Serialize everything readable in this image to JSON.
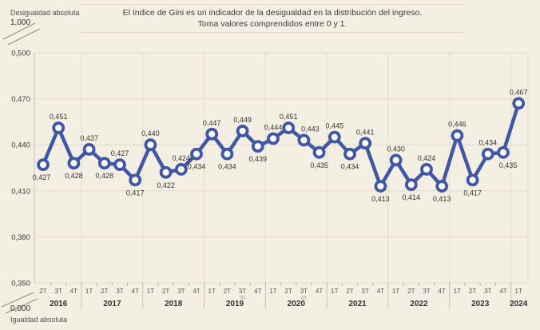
{
  "axis_top": {
    "caption": "Desigualdad absoluta",
    "value": "1,000"
  },
  "axis_bottom": {
    "value": "0,000",
    "caption": "Igualdad absoluta"
  },
  "title": {
    "line1": "El índice de Gini es un indicador de la desigualdad en la distribución del ingreso.",
    "line2": "Toma valores comprendidos entre 0 y 1."
  },
  "chart_data": {
    "type": "line",
    "title": "El índice de Gini es un indicador de la desigualdad en la distribución del ingreso. Toma valores comprendidos entre 0 y 1.",
    "series_color": "#3f57a4",
    "marker_fill": "#fcfaf3",
    "grid_color": "#e1dccd",
    "axis_color": "#c9c4b6",
    "label_color": "#333333",
    "ylim": [
      0.35,
      0.5
    ],
    "y_ticks": [
      "0,500",
      "0,470",
      "0,440",
      "0,410",
      "0,380",
      "0,350"
    ],
    "y_tick_values": [
      0.5,
      0.47,
      0.44,
      0.41,
      0.38,
      0.35
    ],
    "years": [
      {
        "label": "2016",
        "quarters": [
          "2T",
          "3T",
          "4T"
        ]
      },
      {
        "label": "2017",
        "quarters": [
          "1T",
          "2T",
          "3T",
          "4T"
        ]
      },
      {
        "label": "2018",
        "quarters": [
          "1T",
          "2T",
          "3T",
          "4T"
        ]
      },
      {
        "label": "2019",
        "quarters": [
          "1T",
          "2T",
          "3T",
          "4T"
        ]
      },
      {
        "label": "2020",
        "quarters": [
          "1T",
          "2T",
          "3T",
          "4T"
        ]
      },
      {
        "label": "2021",
        "quarters": [
          "1T",
          "2T",
          "3T",
          "4T"
        ]
      },
      {
        "label": "2022",
        "quarters": [
          "1T",
          "2T",
          "3T",
          "4T"
        ]
      },
      {
        "label": "2023",
        "quarters": [
          "1T",
          "2T",
          "3T",
          "4T"
        ]
      },
      {
        "label": "2024",
        "quarters": [
          "1T"
        ]
      }
    ],
    "quarter_footnotes": {
      "13": "(1)",
      "17": "(2)"
    },
    "categories": [
      "2T 2016",
      "3T 2016",
      "4T 2016",
      "1T 2017",
      "2T 2017",
      "3T 2017",
      "4T 2017",
      "1T 2018",
      "2T 2018",
      "3T 2018",
      "4T 2018",
      "1T 2019",
      "2T 2019",
      "3T 2019",
      "4T 2019",
      "1T 2020",
      "2T 2020",
      "3T 2020",
      "4T 2020",
      "1T 2021",
      "2T 2021",
      "3T 2021",
      "4T 2021",
      "1T 2022",
      "2T 2022",
      "3T 2022",
      "4T 2022",
      "1T 2023",
      "2T 2023",
      "3T 2023",
      "4T 2023",
      "1T 2024"
    ],
    "values": [
      0.427,
      0.451,
      0.428,
      0.437,
      0.428,
      0.427,
      0.417,
      0.44,
      0.422,
      0.424,
      0.434,
      0.447,
      0.434,
      0.449,
      0.439,
      0.444,
      0.451,
      0.443,
      0.435,
      0.445,
      0.434,
      0.441,
      0.413,
      0.43,
      0.414,
      0.424,
      0.413,
      0.446,
      0.417,
      0.434,
      0.435,
      0.467
    ],
    "labels": [
      "0,427",
      "0,451",
      "0,428",
      "0,437",
      "0,428",
      "0,427",
      "0,417",
      "0,440",
      "0,422",
      "0,424",
      "0,434",
      "0,447",
      "0,434",
      "0,449",
      "0,439",
      "0,444",
      "0,451",
      "0,443",
      "0,435",
      "0,445",
      "0,434",
      "0,441",
      "0,413",
      "0,430",
      "0,414",
      "0,424",
      "0,413",
      "0,446",
      "0,417",
      "0,434",
      "0,435",
      "0,467"
    ],
    "label_pos": [
      "below",
      "above",
      "below",
      "above",
      "below",
      "above",
      "below",
      "above",
      "below",
      "above",
      "below",
      "above",
      "below",
      "above",
      "below",
      "above",
      "above",
      "above",
      "below",
      "above",
      "below",
      "above",
      "below",
      "above",
      "below",
      "above",
      "below",
      "above",
      "below",
      "above",
      "below",
      "above"
    ],
    "label_dx": {
      "0": -2,
      "17": 8,
      "30": 6
    }
  }
}
